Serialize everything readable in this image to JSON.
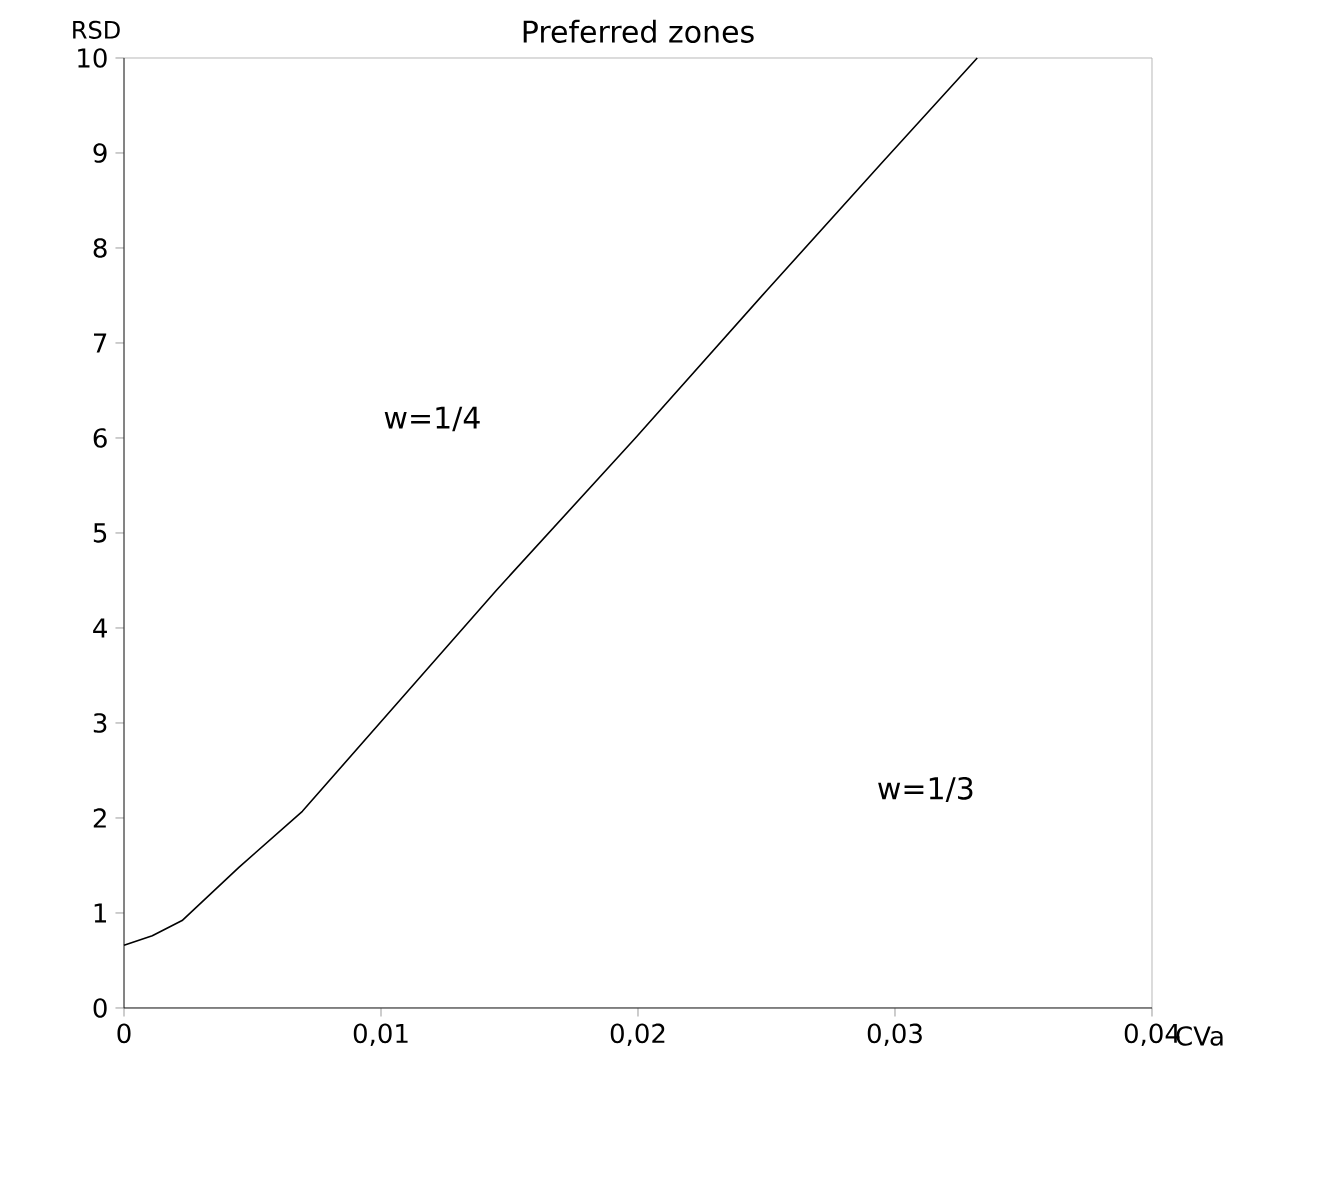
{
  "chart_data": {
    "type": "line",
    "title": "Preferred zones",
    "xlabel": "CVa",
    "ylabel": "RSD",
    "x": [
      0,
      0.0011,
      0.00226,
      0.00447,
      0.00694,
      0.01057,
      0.0145,
      0.0199,
      0.025,
      0.0295,
      0.0332
    ],
    "series": [
      {
        "color": "#000000",
        "values": [
          0.66,
          0.76,
          0.92,
          1.48,
          2.07,
          3.19,
          4.4,
          6.0,
          7.55,
          8.9,
          10
        ]
      }
    ],
    "xlim": [
      0,
      0.04
    ],
    "ylim": [
      0,
      10
    ],
    "xticks": [
      0,
      {
        "value": 0.01,
        "label": "0,01"
      },
      {
        "value": 0.02,
        "label": "0,02"
      },
      {
        "value": 0.03,
        "label": "0,03"
      },
      {
        "value": 0.04,
        "label": "0,04"
      }
    ],
    "yticks": [
      0,
      1,
      2,
      3,
      4,
      5,
      6,
      7,
      8,
      9,
      10
    ],
    "annotations": [
      "w=1/4",
      "w=1/3"
    ],
    "grid": false,
    "marker": "none",
    "line_style": "solid"
  }
}
